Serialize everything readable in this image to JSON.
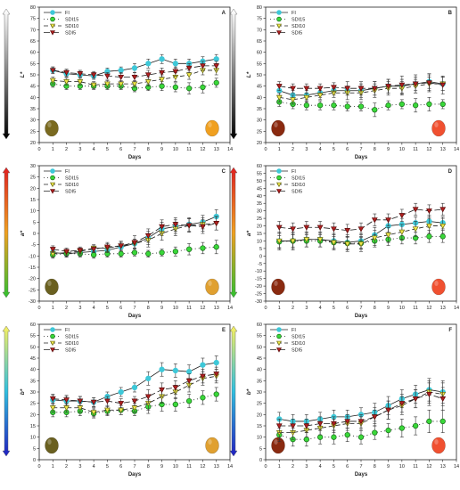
{
  "colors": {
    "FI": "#3ec8d8",
    "SDI15": "#3ad83a",
    "SDI10": "#f0e84a",
    "SDI5": "#b02020"
  },
  "chart_data": [
    {
      "id": "A",
      "type": "line",
      "panel_label": "A",
      "xlabel": "Days",
      "ylabel": "L*",
      "xlim": [
        0,
        14
      ],
      "ylim": [
        20,
        80
      ],
      "xticks": [
        0,
        1,
        2,
        3,
        4,
        5,
        6,
        7,
        8,
        9,
        10,
        11,
        12,
        13,
        14
      ],
      "yticks": [
        20,
        25,
        30,
        35,
        40,
        45,
        50,
        55,
        60,
        65,
        70,
        75,
        80
      ],
      "legend": {
        "position": "top-left",
        "entries": [
          "FI",
          "SDI15",
          "SDI10",
          "SDI5"
        ]
      },
      "colorbar": [
        "#ffffff",
        "#000000"
      ],
      "fruit_start": "#7a6a20",
      "fruit_end": "#f0a020",
      "x": [
        1,
        2,
        3,
        4,
        5,
        6,
        7,
        8,
        9,
        10,
        11,
        12,
        13
      ],
      "series": [
        {
          "name": "FI",
          "values": [
            52,
            50.5,
            50,
            49.5,
            51.5,
            52,
            53,
            55,
            57,
            55,
            55,
            56,
            57
          ],
          "err": [
            1.5,
            1.5,
            1.5,
            1.5,
            1.5,
            1.5,
            2,
            2,
            2,
            2,
            2,
            2,
            2
          ]
        },
        {
          "name": "SDI15",
          "values": [
            46,
            45,
            45,
            45,
            45,
            45,
            44,
            44.5,
            45,
            44.5,
            44,
            44.5,
            46.5
          ],
          "err": [
            1.5,
            1.5,
            1.5,
            1.5,
            1.5,
            1.5,
            1.5,
            1.5,
            2,
            2,
            2.5,
            2.5,
            2
          ]
        },
        {
          "name": "SDI10",
          "values": [
            47.5,
            47,
            47,
            45.5,
            46,
            46,
            46,
            47,
            48,
            49,
            50,
            52,
            52
          ],
          "err": [
            1.5,
            1.5,
            1.5,
            1.5,
            1.5,
            1.5,
            1.5,
            2,
            2,
            2,
            2,
            2,
            2
          ]
        },
        {
          "name": "SDI5",
          "values": [
            52,
            51,
            50.5,
            50,
            49.5,
            49,
            49,
            50,
            51,
            51.5,
            53,
            54,
            54
          ],
          "err": [
            1.5,
            1.5,
            1.5,
            1.5,
            1.5,
            2,
            2,
            2,
            2,
            2,
            2,
            2,
            2
          ]
        }
      ]
    },
    {
      "id": "B",
      "type": "line",
      "panel_label": "B",
      "xlabel": "Days",
      "ylabel": "L*",
      "xlim": [
        0,
        14
      ],
      "ylim": [
        20,
        80
      ],
      "xticks": [
        0,
        1,
        2,
        3,
        4,
        5,
        6,
        7,
        8,
        9,
        10,
        11,
        12,
        13,
        14
      ],
      "yticks": [
        20,
        25,
        30,
        35,
        40,
        45,
        50,
        55,
        60,
        65,
        70,
        75,
        80
      ],
      "legend": {
        "position": "top-left",
        "entries": [
          "FI",
          "SDI15",
          "SDI10",
          "SDI5"
        ]
      },
      "colorbar": [
        "#ffffff",
        "#000000"
      ],
      "fruit_start": "#8a2a10",
      "fruit_end": "#f05030",
      "x": [
        1,
        2,
        3,
        4,
        5,
        6,
        7,
        8,
        9,
        10,
        11,
        12,
        13
      ],
      "series": [
        {
          "name": "FI",
          "values": [
            43,
            41,
            41,
            42,
            43,
            43,
            43,
            44,
            45,
            45,
            46,
            47,
            46
          ],
          "err": [
            2,
            2,
            2,
            2,
            2,
            2,
            3,
            3,
            3,
            3,
            3,
            3,
            3
          ]
        },
        {
          "name": "SDI15",
          "values": [
            38,
            37,
            36.5,
            36.5,
            36.5,
            36,
            36,
            34.5,
            36.5,
            37,
            36.5,
            37,
            37
          ],
          "err": [
            2,
            2,
            2,
            2,
            2,
            2,
            2,
            3,
            2,
            2,
            3,
            3,
            2
          ]
        },
        {
          "name": "SDI10",
          "values": [
            40,
            39,
            40,
            41,
            42,
            42,
            42,
            43,
            44,
            44,
            45,
            46,
            46
          ],
          "err": [
            2,
            2,
            2,
            2,
            2,
            3,
            3,
            3,
            3,
            3,
            3,
            3,
            3
          ]
        },
        {
          "name": "SDI5",
          "values": [
            45,
            44,
            44,
            44,
            44.5,
            44,
            44,
            44,
            45,
            45.5,
            46,
            46.5,
            45.5
          ],
          "err": [
            2,
            2,
            2,
            2,
            2,
            3,
            3,
            3,
            3,
            4,
            4,
            4,
            4
          ]
        }
      ]
    },
    {
      "id": "C",
      "type": "line",
      "panel_label": "C",
      "xlabel": "Days",
      "ylabel": "a*",
      "xlim": [
        0,
        14
      ],
      "ylim": [
        -30,
        30
      ],
      "xticks": [
        0,
        1,
        2,
        3,
        4,
        5,
        6,
        7,
        8,
        9,
        10,
        11,
        12,
        13,
        14
      ],
      "yticks": [
        -30,
        -25,
        -20,
        -15,
        -10,
        -5,
        0,
        5,
        10,
        15,
        20,
        25,
        30
      ],
      "legend": {
        "position": "top-left",
        "entries": [
          "FI",
          "SDI15",
          "SDI10",
          "SDI5"
        ]
      },
      "colorbar": [
        "#e02020",
        "#f0a020",
        "#30c030"
      ],
      "fruit_start": "#6a6020",
      "fruit_end": "#e0a030",
      "x": [
        1,
        2,
        3,
        4,
        5,
        6,
        7,
        8,
        9,
        10,
        11,
        12,
        13
      ],
      "series": [
        {
          "name": "FI",
          "values": [
            -8.5,
            -9,
            -8.5,
            -8,
            -7.5,
            -6,
            -4.5,
            -2,
            2,
            3,
            4,
            5,
            7.5
          ],
          "err": [
            1.5,
            1.5,
            1.5,
            1.5,
            2,
            2,
            2,
            3,
            3,
            3,
            3,
            3,
            3
          ]
        },
        {
          "name": "SDI15",
          "values": [
            -9.5,
            -9,
            -9,
            -9.5,
            -9,
            -9,
            -8.5,
            -9,
            -8.5,
            -8,
            -7,
            -6.5,
            -6
          ],
          "err": [
            1.5,
            1.5,
            1.5,
            1.5,
            1.5,
            1.5,
            1.5,
            1.5,
            1.5,
            2,
            2.5,
            2.5,
            3
          ]
        },
        {
          "name": "SDI10",
          "values": [
            -9,
            -8.5,
            -8,
            -6.5,
            -6.5,
            -5.5,
            -4.5,
            -3,
            0,
            2,
            3.5,
            4,
            4.5
          ],
          "err": [
            1.5,
            1.5,
            1.5,
            1.5,
            2,
            2,
            2,
            3,
            3,
            3,
            3,
            3,
            3
          ]
        },
        {
          "name": "SDI5",
          "values": [
            -7,
            -8,
            -7.5,
            -7,
            -6,
            -5.5,
            -4,
            -1,
            3,
            4,
            3.5,
            3,
            4.5
          ],
          "err": [
            1.5,
            1.5,
            1.5,
            1.5,
            2,
            2,
            3,
            3,
            3,
            3,
            3,
            3,
            3
          ]
        }
      ]
    },
    {
      "id": "D",
      "type": "line",
      "panel_label": "D",
      "xlabel": "Days",
      "ylabel": "a*",
      "xlim": [
        0,
        14
      ],
      "ylim": [
        -30,
        60
      ],
      "xticks": [
        0,
        1,
        2,
        3,
        4,
        5,
        6,
        7,
        8,
        9,
        10,
        11,
        12,
        13,
        14
      ],
      "yticks": [
        -30,
        -25,
        -20,
        -15,
        -10,
        -5,
        0,
        5,
        10,
        15,
        20,
        25,
        30,
        35,
        40,
        45,
        50,
        55,
        60
      ],
      "legend": {
        "position": "top-left",
        "entries": [
          "FI",
          "SDI15",
          "SDI10",
          "SDI5"
        ]
      },
      "colorbar": [
        "#e02020",
        "#f0a020",
        "#30c030"
      ],
      "fruit_start": "#8a2a10",
      "fruit_end": "#f05030",
      "x": [
        1,
        2,
        3,
        4,
        5,
        6,
        7,
        8,
        9,
        10,
        11,
        12,
        13
      ],
      "series": [
        {
          "name": "FI",
          "values": [
            10,
            10,
            11,
            11,
            10,
            9,
            10,
            14,
            20,
            21,
            22,
            23,
            22
          ],
          "err": [
            6,
            6,
            5,
            5,
            5,
            5,
            5,
            5,
            4,
            4,
            4,
            4,
            4
          ]
        },
        {
          "name": "SDI15",
          "values": [
            9.5,
            10,
            10,
            10,
            9,
            8.5,
            8.5,
            10,
            11,
            12,
            12,
            13,
            13
          ],
          "err": [
            4,
            4,
            4,
            4,
            4,
            4,
            4,
            4,
            4,
            4,
            4,
            4,
            4
          ]
        },
        {
          "name": "SDI10",
          "values": [
            10,
            10,
            11,
            11,
            9,
            8,
            8,
            12,
            14,
            16,
            18,
            20,
            20
          ],
          "err": [
            5,
            5,
            5,
            5,
            5,
            5,
            5,
            5,
            5,
            5,
            5,
            5,
            5
          ]
        },
        {
          "name": "SDI5",
          "values": [
            19,
            18,
            19,
            19,
            18,
            17,
            18,
            24,
            24,
            27,
            31,
            30,
            31
          ],
          "err": [
            4,
            4,
            4,
            4,
            4,
            4,
            4,
            4,
            4,
            4,
            4,
            4,
            4
          ]
        }
      ]
    },
    {
      "id": "E",
      "type": "line",
      "panel_label": "E",
      "xlabel": "Days",
      "ylabel": "b*",
      "xlim": [
        0,
        14
      ],
      "ylim": [
        0,
        60
      ],
      "xticks": [
        0,
        1,
        2,
        3,
        4,
        5,
        6,
        7,
        8,
        9,
        10,
        11,
        12,
        13,
        14
      ],
      "yticks": [
        0,
        5,
        10,
        15,
        20,
        25,
        30,
        35,
        40,
        45,
        50,
        55,
        60
      ],
      "legend": {
        "position": "top-left",
        "entries": [
          "FI",
          "SDI15",
          "SDI10",
          "SDI5"
        ]
      },
      "colorbar": [
        "#f8f060",
        "#30c0e0",
        "#2020c0"
      ],
      "fruit_start": "#6a6020",
      "fruit_end": "#e0a030",
      "x": [
        1,
        2,
        3,
        4,
        5,
        6,
        7,
        8,
        9,
        10,
        11,
        12,
        13
      ],
      "series": [
        {
          "name": "FI",
          "values": [
            26.5,
            26,
            26,
            25.5,
            28,
            30,
            32,
            36,
            40,
            39.5,
            39,
            42,
            43
          ],
          "err": [
            2,
            2,
            2,
            2,
            2,
            2,
            2,
            3,
            3,
            3,
            3,
            3,
            3
          ]
        },
        {
          "name": "SDI15",
          "values": [
            21,
            21,
            21.5,
            20.5,
            21.5,
            22,
            21.5,
            23.5,
            24.5,
            24.5,
            26,
            27.5,
            29
          ],
          "err": [
            2,
            2,
            2,
            2,
            2,
            2,
            2,
            3,
            3,
            3,
            3,
            3,
            3
          ]
        },
        {
          "name": "SDI10",
          "values": [
            23,
            23,
            23,
            21,
            22,
            22,
            23,
            25,
            28,
            30,
            33,
            36,
            37
          ],
          "err": [
            2,
            2,
            2,
            2,
            2,
            2,
            2,
            3,
            3,
            3,
            3,
            3,
            3
          ]
        },
        {
          "name": "SDI5",
          "values": [
            27,
            26.5,
            26,
            25.5,
            26,
            25,
            26,
            28,
            31,
            32,
            35,
            37,
            38
          ],
          "err": [
            2,
            2,
            2,
            2,
            2,
            2,
            2,
            3,
            3,
            3,
            3,
            3,
            3
          ]
        }
      ]
    },
    {
      "id": "F",
      "type": "line",
      "panel_label": "F",
      "xlabel": "Days",
      "ylabel": "b*",
      "xlim": [
        0,
        14
      ],
      "ylim": [
        0,
        60
      ],
      "xticks": [
        0,
        1,
        2,
        3,
        4,
        5,
        6,
        7,
        8,
        9,
        10,
        11,
        12,
        13,
        14
      ],
      "yticks": [
        0,
        5,
        10,
        15,
        20,
        25,
        30,
        35,
        40,
        45,
        50,
        55,
        60
      ],
      "legend": {
        "position": "top-left",
        "entries": [
          "FI",
          "SDI15",
          "SDI10",
          "SDI5"
        ]
      },
      "colorbar": [
        "#f8f060",
        "#30c0e0",
        "#2020c0"
      ],
      "fruit_start": "#8a2a10",
      "fruit_end": "#f05030",
      "x": [
        1,
        2,
        3,
        4,
        5,
        6,
        7,
        8,
        9,
        10,
        11,
        12,
        13
      ],
      "series": [
        {
          "name": "FI",
          "values": [
            18,
            17,
            17,
            18,
            19,
            19,
            20,
            21,
            24,
            27,
            29,
            31,
            30
          ],
          "err": [
            3,
            3,
            3,
            3,
            3,
            3,
            3,
            4,
            4,
            4,
            4,
            5,
            5
          ]
        },
        {
          "name": "SDI15",
          "values": [
            11,
            9,
            9,
            10,
            10,
            11,
            10,
            12,
            13,
            14,
            15,
            17,
            17
          ],
          "err": [
            3,
            3,
            3,
            3,
            3,
            3,
            3,
            3,
            3,
            4,
            4,
            5,
            5
          ]
        },
        {
          "name": "SDI10",
          "values": [
            12,
            12,
            13,
            14,
            15,
            16,
            16,
            19,
            22,
            24,
            27,
            30,
            29
          ],
          "err": [
            3,
            3,
            3,
            3,
            3,
            3,
            3,
            4,
            4,
            4,
            4,
            5,
            5
          ]
        },
        {
          "name": "SDI5",
          "values": [
            15,
            15,
            15,
            16,
            16,
            17,
            17,
            19,
            22,
            25,
            27,
            29,
            27
          ],
          "err": [
            3,
            3,
            3,
            3,
            3,
            3,
            3,
            3,
            4,
            4,
            4,
            5,
            5
          ]
        }
      ]
    }
  ]
}
